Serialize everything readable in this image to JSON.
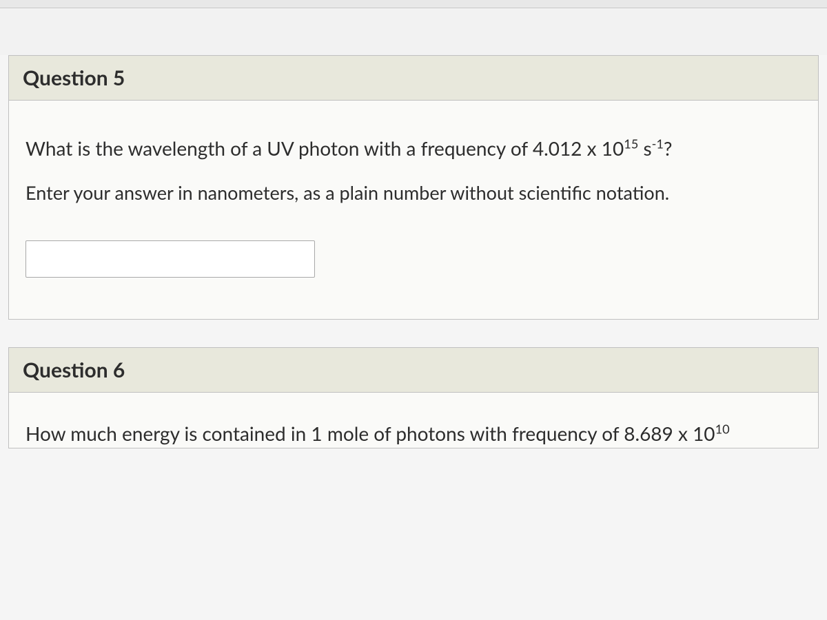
{
  "question5": {
    "header": "Question 5",
    "prompt_prefix": "What is the wavelength of a UV photon with a frequency of 4.012 x 10",
    "prompt_exp": "15",
    "prompt_mid": " s",
    "prompt_exp2": "-1",
    "prompt_suffix": "?",
    "instruction": "Enter your answer in nanometers, as a plain number without scientific notation.",
    "input_value": ""
  },
  "question6": {
    "header": "Question 6",
    "prompt_prefix": "How much energy is contained in 1 mole of photons with frequency of 8.689 x 10",
    "prompt_exp": "10"
  },
  "colors": {
    "header_bg": "#e8e8dc",
    "body_bg": "#fafaf8",
    "border": "#c0c0c0",
    "text": "#2d2d2d"
  },
  "typography": {
    "title_fontsize": 30,
    "body_fontsize": 28,
    "font_family": "Lato, Helvetica Neue, Arial, sans-serif"
  }
}
